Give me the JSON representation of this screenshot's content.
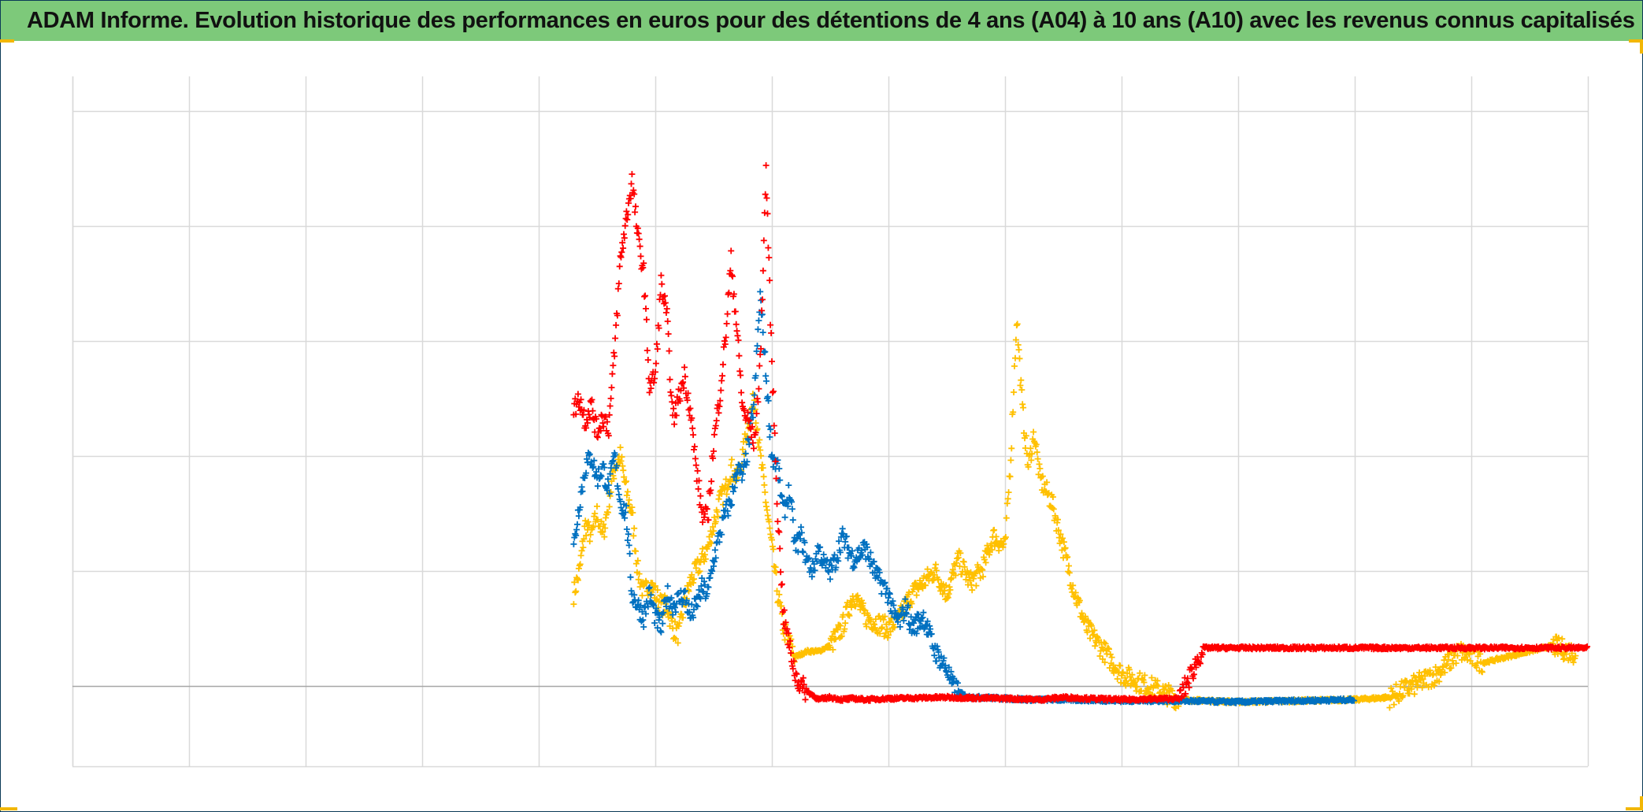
{
  "title": "ADAM Informe. Evolution historique des performances en euros pour des détentions de 4 ans (A04) à 10 ans (A10) avec les revenus connus capitalisés",
  "colors": {
    "title_bar": "#7dc97a",
    "border": "#0b3a57",
    "corner_marks": "#f2b705",
    "grid": "#d9d9d9",
    "zero_line": "#a6a6a6"
  },
  "chart_data": {
    "type": "scatter",
    "marker": "+",
    "title": "ADAM Informe. Evolution historique des performances en euros pour des détentions de 4 ans (A04) à 10 ans (A10) avec les revenus connus capitalisés",
    "xlabel": "",
    "ylabel": "",
    "x_tick_labels": [],
    "y_tick_labels": [],
    "xlim": [
      0,
      13
    ],
    "ylim": [
      -0.7,
      5.3
    ],
    "grid": true,
    "legend": "none",
    "series": [
      {
        "color": "#ff0000",
        "x": [
          4.3,
          4.35,
          4.4,
          4.45,
          4.5,
          4.55,
          4.6,
          4.65,
          4.7,
          4.8,
          4.85,
          4.9,
          4.95,
          5.0,
          5.05,
          5.1,
          5.15,
          5.2,
          5.25,
          5.3,
          5.35,
          5.4,
          5.45,
          5.5,
          5.55,
          5.6,
          5.65,
          5.7,
          5.75,
          5.8,
          5.85,
          5.9,
          5.95,
          6.0,
          6.05,
          6.1,
          6.15,
          6.2,
          6.25,
          6.3,
          6.35,
          6.4,
          6.5,
          6.55,
          6.6,
          6.7,
          6.8,
          7.0,
          7.5,
          8.0,
          8.3,
          8.5,
          8.7,
          9.0,
          9.5,
          9.7,
          10.0,
          10.5,
          11.0,
          11.5,
          12.0,
          12.5,
          13.0
        ],
        "y": [
          2.4,
          2.5,
          2.3,
          2.45,
          2.2,
          2.35,
          2.25,
          2.9,
          3.7,
          4.4,
          3.9,
          3.6,
          2.6,
          2.7,
          3.5,
          3.2,
          2.3,
          2.5,
          2.7,
          2.4,
          1.9,
          1.5,
          1.45,
          2.1,
          2.5,
          3.0,
          3.7,
          3.1,
          2.4,
          2.3,
          2.1,
          2.8,
          4.5,
          2.8,
          1.5,
          0.6,
          0.35,
          0.1,
          0.0,
          -0.05,
          -0.08,
          -0.12,
          -0.1,
          -0.11,
          -0.12,
          -0.11,
          -0.12,
          -0.11,
          -0.1,
          -0.11,
          -0.12,
          -0.1,
          -0.11,
          -0.12,
          -0.11,
          0.33,
          0.33,
          0.33,
          0.33,
          0.33,
          0.33,
          0.33,
          0.33
        ]
      },
      {
        "color": "#0070c0",
        "x": [
          4.3,
          4.35,
          4.4,
          4.45,
          4.5,
          4.55,
          4.6,
          4.65,
          4.7,
          4.75,
          4.8,
          4.85,
          4.9,
          4.95,
          5.0,
          5.05,
          5.1,
          5.15,
          5.2,
          5.25,
          5.3,
          5.35,
          5.4,
          5.45,
          5.5,
          5.55,
          5.6,
          5.65,
          5.7,
          5.75,
          5.8,
          5.85,
          5.9,
          6.0,
          6.05,
          6.1,
          6.15,
          6.2,
          6.25,
          6.3,
          6.35,
          6.4,
          6.45,
          6.5,
          6.55,
          6.6,
          6.7,
          6.8,
          6.9,
          7.0,
          7.05,
          7.1,
          7.15,
          7.2,
          7.3,
          7.4,
          7.5,
          7.55,
          7.6,
          7.65,
          7.7,
          7.8,
          8.0,
          8.2,
          8.5,
          9.0,
          9.5,
          10.0,
          10.5,
          11.0
        ],
        "y": [
          1.2,
          1.6,
          1.9,
          2.0,
          1.8,
          1.9,
          1.7,
          2.0,
          1.6,
          1.5,
          0.8,
          0.7,
          0.6,
          0.8,
          0.6,
          0.5,
          0.8,
          0.7,
          0.75,
          0.8,
          0.6,
          0.7,
          0.85,
          0.8,
          1.1,
          1.3,
          1.5,
          1.6,
          1.9,
          1.8,
          2.1,
          2.5,
          3.4,
          2.0,
          1.9,
          1.5,
          1.7,
          1.2,
          1.3,
          1.1,
          1.0,
          1.2,
          1.05,
          1.0,
          1.1,
          1.3,
          1.1,
          1.2,
          0.95,
          0.8,
          0.6,
          0.55,
          0.7,
          0.5,
          0.6,
          0.3,
          0.15,
          0.0,
          -0.05,
          -0.08,
          -0.1,
          -0.1,
          -0.11,
          -0.12,
          -0.12,
          -0.13,
          -0.13,
          -0.14,
          -0.13,
          -0.12
        ]
      },
      {
        "color": "#ffc000",
        "x": [
          4.3,
          4.35,
          4.4,
          4.45,
          4.5,
          4.55,
          4.6,
          4.65,
          4.7,
          4.75,
          4.8,
          4.85,
          4.9,
          4.95,
          5.0,
          5.05,
          5.1,
          5.15,
          5.2,
          5.25,
          5.3,
          5.35,
          5.4,
          5.45,
          5.5,
          5.55,
          5.6,
          5.65,
          5.7,
          5.75,
          5.8,
          5.85,
          5.9,
          6.0,
          6.05,
          6.1,
          6.2,
          6.3,
          6.4,
          6.5,
          6.6,
          6.7,
          6.8,
          7.0,
          7.1,
          7.2,
          7.3,
          7.4,
          7.5,
          7.6,
          7.7,
          7.8,
          7.9,
          8.0,
          8.05,
          8.1,
          8.15,
          8.2,
          8.25,
          8.3,
          8.4,
          8.5,
          8.6,
          8.7,
          9.0,
          9.5,
          10.0,
          10.5,
          11.0,
          11.3,
          11.5,
          11.7,
          11.9,
          12.1,
          12.3,
          12.5,
          12.7,
          12.9
        ],
        "y": [
          0.8,
          1.0,
          1.4,
          1.3,
          1.5,
          1.3,
          1.6,
          1.9,
          2.0,
          1.7,
          1.5,
          1.0,
          0.8,
          0.9,
          0.8,
          0.7,
          0.7,
          0.5,
          0.45,
          0.7,
          0.9,
          1.0,
          1.1,
          1.2,
          1.4,
          1.6,
          1.7,
          1.9,
          1.8,
          2.0,
          2.3,
          2.5,
          2.0,
          1.2,
          0.8,
          0.5,
          0.25,
          0.3,
          0.3,
          0.35,
          0.5,
          0.8,
          0.6,
          0.5,
          0.6,
          0.8,
          0.9,
          1.0,
          0.8,
          1.1,
          0.9,
          1.0,
          1.3,
          1.2,
          2.0,
          3.2,
          2.4,
          1.9,
          2.2,
          1.8,
          1.6,
          1.2,
          0.8,
          0.5,
          0.1,
          -0.12,
          -0.14,
          -0.13,
          -0.12,
          -0.1,
          0.0,
          0.1,
          0.3,
          0.2,
          0.25,
          0.3,
          0.35,
          0.28
        ]
      }
    ]
  }
}
